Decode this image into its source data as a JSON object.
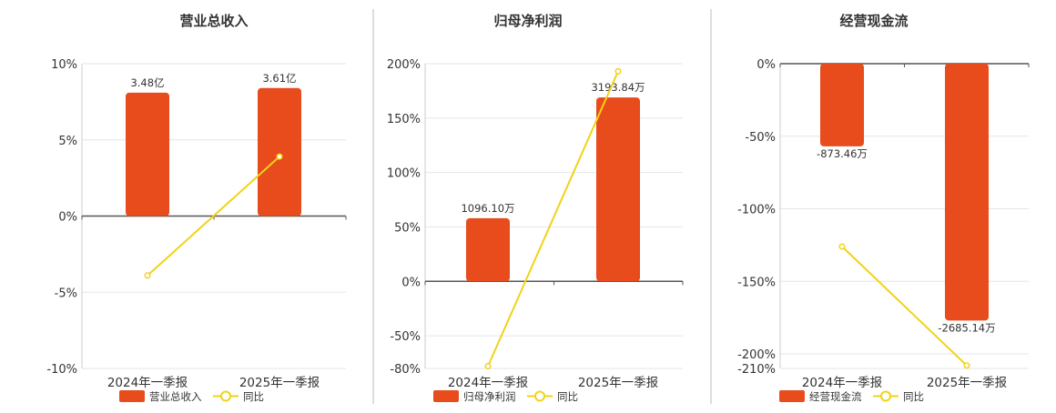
{
  "colors": {
    "bar": "#e84b1c",
    "line": "#f1d317",
    "axis": "#555555",
    "grid": "#e3e6ee",
    "divider": "#bbbbbb",
    "text": "#333333"
  },
  "legend_line_label": "同比",
  "chart_data": [
    {
      "type": "bar",
      "title": "营业总收入",
      "categories": [
        "2024年一季报",
        "2025年一季报"
      ],
      "yticks": [
        "10%",
        "5%",
        "0%",
        "-5%",
        "-10%"
      ],
      "ylim": [
        -10,
        10
      ],
      "tick_values": [
        10,
        5,
        0,
        -5,
        -10
      ],
      "series": [
        {
          "name": "营业总收入",
          "kind": "bar",
          "values": [
            8.1,
            8.4
          ],
          "labels": [
            "3.48亿",
            "3.61亿"
          ]
        },
        {
          "name": "同比",
          "kind": "line",
          "values": [
            -3.9,
            3.9
          ]
        }
      ]
    },
    {
      "type": "bar",
      "title": "归母净利润",
      "categories": [
        "2024年一季报",
        "2025年一季报"
      ],
      "yticks": [
        "200%",
        "150%",
        "100%",
        "50%",
        "0%",
        "-50%",
        "-80%"
      ],
      "ylim": [
        -80,
        200
      ],
      "tick_values": [
        200,
        150,
        100,
        50,
        0,
        -50,
        -80
      ],
      "series": [
        {
          "name": "归母净利润",
          "kind": "bar",
          "values": [
            58,
            169
          ],
          "labels": [
            "1096.10万",
            "3193.84万"
          ]
        },
        {
          "name": "同比",
          "kind": "line",
          "values": [
            -78,
            193
          ]
        }
      ]
    },
    {
      "type": "bar",
      "title": "经营现金流",
      "categories": [
        "2024年一季报",
        "2025年一季报"
      ],
      "yticks": [
        "0%",
        "-50%",
        "-100%",
        "-150%",
        "-200%",
        "-210%"
      ],
      "ylim": [
        -210,
        0
      ],
      "tick_values": [
        0,
        -50,
        -100,
        -150,
        -200,
        -210
      ],
      "series": [
        {
          "name": "经营现金流",
          "kind": "bar",
          "values": [
            -57,
            -177
          ],
          "labels": [
            "-873.46万",
            "-2685.14万"
          ]
        },
        {
          "name": "同比",
          "kind": "line",
          "values": [
            -126,
            -208
          ]
        }
      ]
    }
  ]
}
